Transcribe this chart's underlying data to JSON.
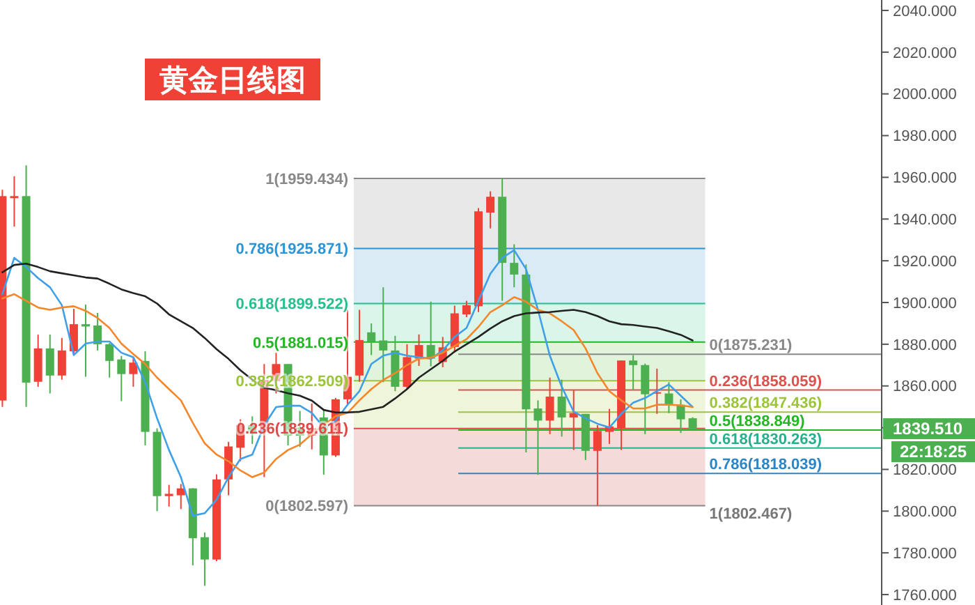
{
  "chart_data": {
    "type": "candlestick",
    "title": "黄金日线图",
    "categories": [
      null,
      null,
      null,
      null,
      null,
      null,
      null,
      null,
      null,
      null,
      null,
      null,
      null,
      null,
      null,
      null,
      null,
      null,
      null,
      null,
      null,
      null,
      null,
      null,
      null,
      null,
      null,
      null,
      null,
      null,
      null,
      null,
      null,
      null,
      null,
      null,
      null,
      null,
      null,
      null,
      null,
      null,
      null,
      null,
      null,
      null,
      null,
      null,
      null,
      null,
      null,
      null,
      null,
      null,
      null,
      null,
      null,
      null,
      null,
      null,
      null,
      null,
      null,
      null,
      null,
      null,
      null,
      null,
      null,
      null,
      null,
      null,
      null,
      null
    ],
    "ohlc": [
      [
        1853,
        1954,
        1850,
        1951
      ],
      [
        1950,
        1960.5,
        1936.4,
        1951
      ],
      [
        1951,
        1965.7,
        1850,
        1861.6
      ],
      [
        1862,
        1884.6,
        1859.6,
        1878
      ],
      [
        1878,
        1884.6,
        1856.4,
        1865
      ],
      [
        1865,
        1883,
        1863,
        1877
      ],
      [
        1876.6,
        1897,
        1874.8,
        1889.6
      ],
      [
        1889.6,
        1899,
        1864.4,
        1888.5
      ],
      [
        1889,
        1895,
        1877,
        1880
      ],
      [
        1880,
        1880.5,
        1864,
        1872
      ],
      [
        1872.7,
        1874.4,
        1852.7,
        1865.7
      ],
      [
        1865.7,
        1873.7,
        1859.6,
        1871.2
      ],
      [
        1872,
        1876.6,
        1831.5,
        1838
      ],
      [
        1838,
        1839.7,
        1800,
        1807.2
      ],
      [
        1807.2,
        1812.6,
        1802.2,
        1808.3
      ],
      [
        1807.6,
        1813,
        1801,
        1810.9
      ],
      [
        1810.9,
        1811,
        1774,
        1787
      ],
      [
        1787.5,
        1789.8,
        1764.2,
        1776.8
      ],
      [
        1776.8,
        1817.6,
        1776,
        1815.2
      ],
      [
        1815.2,
        1833.2,
        1807.6,
        1831
      ],
      [
        1830.4,
        1844,
        1823.9,
        1841.2
      ],
      [
        1841.2,
        1845.4,
        1832.2,
        1838
      ],
      [
        1838,
        1870.5,
        1816.3,
        1862.9
      ],
      [
        1862.4,
        1875.9,
        1856.4,
        1870.5
      ],
      [
        1870.5,
        1870.5,
        1831.5,
        1836.2
      ],
      [
        1840,
        1848,
        1830.8,
        1836.2
      ],
      [
        1836.2,
        1851.6,
        1829.6,
        1839.7
      ],
      [
        1844.9,
        1849,
        1817.5,
        1826.7
      ],
      [
        1826.7,
        1854.3,
        1826,
        1853.6
      ],
      [
        1853.6,
        1896.5,
        1851,
        1864.4
      ],
      [
        1865,
        1896.5,
        1862,
        1882
      ],
      [
        1885.7,
        1890,
        1874.8,
        1881.3
      ],
      [
        1881.8,
        1907.3,
        1861.8,
        1877
      ],
      [
        1877,
        1884,
        1857.5,
        1859.6
      ],
      [
        1859.6,
        1880,
        1858.5,
        1873.8
      ],
      [
        1873.1,
        1884.7,
        1869.6,
        1879.6
      ],
      [
        1879.6,
        1900.4,
        1869.4,
        1873.1
      ],
      [
        1871.5,
        1883.5,
        1869,
        1878.5
      ],
      [
        1878.7,
        1898.5,
        1876,
        1894.8
      ],
      [
        1894.3,
        1900.8,
        1893,
        1898.7
      ],
      [
        1898.2,
        1945.3,
        1895.4,
        1943.7
      ],
      [
        1943.1,
        1953.3,
        1935.5,
        1950.7
      ],
      [
        1950.7,
        1959.4,
        1900.8,
        1919
      ],
      [
        1919,
        1927.9,
        1907.3,
        1913.4
      ],
      [
        1913.4,
        1918.2,
        1828.2,
        1848.8
      ],
      [
        1849.2,
        1853.1,
        1817.4,
        1843.4
      ],
      [
        1843.4,
        1864,
        1836.9,
        1854.9
      ],
      [
        1854.9,
        1863,
        1835.7,
        1844.9
      ],
      [
        1844.9,
        1857.9,
        1829.3,
        1847
      ],
      [
        1846.6,
        1846.6,
        1824.5,
        1828.9
      ],
      [
        1828.9,
        1841.2,
        1802.5,
        1838.4
      ],
      [
        1838,
        1849,
        1832.2,
        1840.6
      ],
      [
        1839.7,
        1872.2,
        1829.3,
        1872.2
      ],
      [
        1872.2,
        1874.8,
        1857.9,
        1870
      ],
      [
        1870,
        1870.7,
        1836.9,
        1856
      ],
      [
        1856.5,
        1868.3,
        1846.6,
        1857
      ],
      [
        1856.4,
        1861.8,
        1847,
        1851
      ],
      [
        1851,
        1853.6,
        1837.5,
        1844
      ],
      [
        1844.5,
        1845,
        1839,
        1839.51
      ],
      null,
      null,
      null,
      null,
      null,
      null,
      null,
      null,
      null,
      null,
      null,
      null,
      null,
      null,
      null
    ],
    "colors": [
      "#ef4136",
      "#ef4136",
      "#4caf50",
      "#ef4136",
      "#4caf50",
      "#ef4136",
      "#ef4136",
      "#4caf50",
      "#4caf50",
      "#4caf50",
      "#4caf50",
      "#ef4136",
      "#4caf50",
      "#4caf50",
      "#ef4136",
      "#ef4136",
      "#4caf50",
      "#4caf50",
      "#ef4136",
      "#ef4136",
      "#ef4136",
      "#4caf50",
      "#ef4136",
      "#ef4136",
      "#4caf50",
      "#4caf50",
      "#ef4136",
      "#4caf50",
      "#ef4136",
      "#ef4136",
      "#ef4136",
      "#4caf50",
      "#4caf50",
      "#4caf50",
      "#ef4136",
      "#ef4136",
      "#4caf50",
      "#ef4136",
      "#ef4136",
      "#ef4136",
      "#ef4136",
      "#ef4136",
      "#4caf50",
      "#4caf50",
      "#4caf50",
      "#4caf50",
      "#ef4136",
      "#4caf50",
      "#ef4136",
      "#4caf50",
      "#ef4136",
      "#ef4136",
      "#ef4136",
      "#4caf50",
      "#4caf50",
      "#ef4136",
      "#4caf50",
      "#4caf50",
      "#4caf50",
      null,
      null,
      null,
      null,
      null,
      null,
      null,
      null,
      null,
      null,
      null,
      null,
      null,
      null,
      null
    ],
    "series": [
      {
        "type": "line",
        "color": "#3fa0e8",
        "values": [
          1904,
          1921.4,
          1917,
          1911.7,
          1907.3,
          1898.7,
          1874.8,
          1880.3,
          1881.3,
          1881.3,
          1875.9,
          1873.8,
          1861.8,
          1844.5,
          1829.3,
          1816.3,
          1797.8,
          1799,
          1805.5,
          1816.3,
          1825,
          1827.1,
          1841.2,
          1849.9,
          1850.5,
          1850.5,
          1847.1,
          1840.1,
          1843.4,
          1851,
          1857.5,
          1870.5,
          1874.5,
          1875.9,
          1874.5,
          1873.8,
          1873,
          1877,
          1883.5,
          1887.8,
          1900.8,
          1913.8,
          1921.4,
          1925.1,
          1916,
          1896.5,
          1874.5,
          1859.6,
          1847.7,
          1844.5,
          1841.9,
          1840.1,
          1846.6,
          1852,
          1854.2,
          1857.5,
          1860.7,
          1855.3,
          1849.9,
          null,
          null,
          null,
          null,
          null,
          null,
          null,
          null,
          null,
          null,
          null,
          null,
          null,
          null,
          null
        ]
      },
      {
        "type": "line",
        "color": "#f5862a",
        "values": [
          1901.9,
          1904,
          1900.8,
          1897.6,
          1896.5,
          1897.6,
          1898.2,
          1896,
          1892.6,
          1887.8,
          1880.3,
          1875.3,
          1870.5,
          1864,
          1858.5,
          1853.1,
          1842.3,
          1832.5,
          1827.1,
          1823.9,
          1819.5,
          1816.3,
          1818.5,
          1825,
          1829.3,
          1831.9,
          1836.9,
          1841.2,
          1845.5,
          1847.1,
          1853.1,
          1858.5,
          1862.9,
          1866.1,
          1870,
          1873.1,
          1873.5,
          1875.9,
          1879.2,
          1882.4,
          1888.3,
          1895.4,
          1898.7,
          1902.6,
          1900.4,
          1896.5,
          1894.8,
          1891,
          1886.8,
          1878,
          1866.1,
          1857.5,
          1853.1,
          1849.2,
          1849.2,
          1851,
          1851,
          1850.7,
          1849.9,
          null,
          null,
          null,
          null,
          null,
          null,
          null,
          null,
          null,
          null,
          null,
          null,
          null,
          null,
          null
        ]
      },
      {
        "type": "line",
        "color": "#222222",
        "values": [
          1914.5,
          1918,
          1918.6,
          1917,
          1915,
          1914,
          1913,
          1912,
          1911.5,
          1909,
          1906.3,
          1904.5,
          1903,
          1899.5,
          1894.3,
          1891,
          1887.8,
          1883,
          1877.6,
          1873,
          1867.5,
          1863,
          1859.2,
          1858,
          1856.5,
          1855.3,
          1853,
          1848.5,
          1847.3,
          1847.3,
          1847.6,
          1848.8,
          1850,
          1854,
          1858.5,
          1864,
          1868,
          1872,
          1876.5,
          1880,
          1883.5,
          1887.5,
          1891,
          1893.5,
          1894.8,
          1895.2,
          1895.4,
          1896,
          1896.5,
          1895.4,
          1893.5,
          1891,
          1889.6,
          1889.2,
          1888.5,
          1887.8,
          1886.2,
          1884.5,
          1881.8,
          null,
          null,
          null,
          null,
          null,
          null,
          null,
          null,
          null,
          null,
          null,
          null,
          null,
          null,
          null
        ]
      }
    ],
    "ylim": [
      1755,
      2045
    ],
    "yticks": [
      {
        "value": 1760,
        "label": "1760.000"
      },
      {
        "value": 1780,
        "label": "1780.000"
      },
      {
        "value": 1800,
        "label": "1800.000"
      },
      {
        "value": 1820,
        "label": "1820.000"
      },
      {
        "value": 1840,
        "label": null
      },
      {
        "value": 1860,
        "label": "1860.000"
      },
      {
        "value": 1880,
        "label": "1880.000"
      },
      {
        "value": 1900,
        "label": "1900.000"
      },
      {
        "value": 1920,
        "label": "1920.000"
      },
      {
        "value": 1940,
        "label": "1940.000"
      },
      {
        "value": 1960,
        "label": "1960.000"
      },
      {
        "value": 1980,
        "label": "1980.000"
      },
      {
        "value": 2000,
        "label": "2000.000"
      },
      {
        "value": 2020,
        "label": "2020.000"
      },
      {
        "value": 2040,
        "label": "2040.000"
      }
    ],
    "tick_labels": "y",
    "bands": [
      {
        "axis": "y",
        "from": 1925.871,
        "to": 1959.434,
        "color": "#e4e4e4"
      },
      {
        "axis": "y",
        "from": 1899.522,
        "to": 1925.871,
        "color": "#d3e7f4"
      },
      {
        "axis": "y",
        "from": 1881.015,
        "to": 1899.522,
        "color": "#d3f3e6"
      },
      {
        "axis": "y",
        "from": 1862.509,
        "to": 1881.015,
        "color": "#d9f2d3"
      },
      {
        "axis": "y",
        "from": 1839.611,
        "to": 1862.509,
        "color": "#ecf3d3"
      },
      {
        "axis": "y",
        "from": 1802.597,
        "to": 1839.611,
        "color": "#f3d3d3"
      }
    ],
    "ref_lines": [
      {
        "axis": "y",
        "value": 1959.434,
        "label": "1(1959.434)",
        "color": "#888888"
      },
      {
        "axis": "y",
        "value": 1925.871,
        "label": "0.786(1925.871)",
        "color": "#2b95d6"
      },
      {
        "axis": "y",
        "value": 1899.522,
        "label": "0.618(1899.522)",
        "color": "#26c08e"
      },
      {
        "axis": "y",
        "value": 1881.015,
        "label": "0.5(1881.015)",
        "color": "#22b822"
      },
      {
        "axis": "y",
        "value": 1862.509,
        "label": "0.382(1862.509)",
        "color": "#9cc43a"
      },
      {
        "axis": "y",
        "value": 1839.611,
        "label": "0.236(1839.611)",
        "color": "#e04848"
      },
      {
        "axis": "y",
        "value": 1802.597,
        "label": "0(1802.597)",
        "color": "#888888"
      },
      {
        "axis": "y",
        "value": 1875.231,
        "label": "0(1875.231)",
        "color": "#888888"
      },
      {
        "axis": "y",
        "value": 1858.059,
        "label": "0.236(1858.059)",
        "color": "#d9534f"
      },
      {
        "axis": "y",
        "value": 1847.436,
        "label": "0.382(1847.436)",
        "color": "#9cc43a"
      },
      {
        "axis": "y",
        "value": 1838.849,
        "label": "0.5(1838.849)",
        "color": "#22b822"
      },
      {
        "axis": "y",
        "value": 1830.263,
        "label": "0.618(1830.263)",
        "color": "#26b08e"
      },
      {
        "axis": "y",
        "value": 1818.039,
        "label": "0.786(1818.039)",
        "color": "#2b85c6"
      }
    ],
    "annotations": [
      "1839.510",
      "22:18:25",
      "1(1802.467)"
    ]
  }
}
